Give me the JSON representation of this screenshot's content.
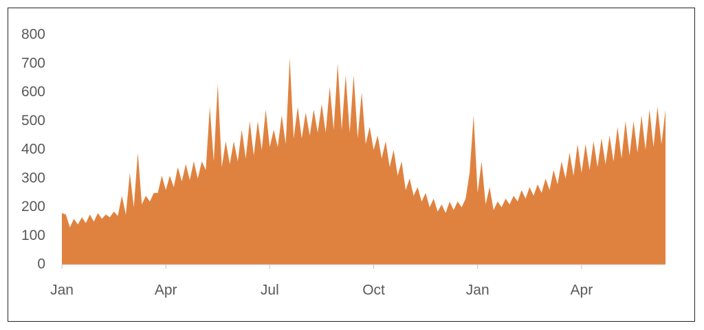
{
  "chart_data": {
    "type": "area",
    "color": "#e0823f",
    "categories": [
      "Jan",
      null,
      null,
      null,
      null,
      null,
      null,
      null,
      null,
      null,
      null,
      null,
      null,
      null,
      null,
      null,
      null,
      null,
      null,
      null,
      null,
      null,
      null,
      null,
      null,
      null,
      "Apr",
      null,
      null,
      null,
      null,
      null,
      null,
      null,
      null,
      null,
      null,
      null,
      null,
      null,
      null,
      null,
      null,
      null,
      null,
      null,
      null,
      null,
      null,
      null,
      null,
      null,
      "Jul",
      null,
      null,
      null,
      null,
      null,
      null,
      null,
      null,
      null,
      null,
      null,
      null,
      null,
      null,
      null,
      null,
      null,
      null,
      null,
      null,
      null,
      null,
      null,
      null,
      null,
      "Oct",
      null,
      null,
      null,
      null,
      null,
      null,
      null,
      null,
      null,
      null,
      null,
      null,
      null,
      null,
      null,
      null,
      null,
      null,
      null,
      null,
      null,
      null,
      null,
      null,
      null,
      "Jan",
      null,
      null,
      null,
      null,
      null,
      null,
      null,
      null,
      null,
      null,
      null,
      null,
      null,
      null,
      null,
      null,
      null,
      null,
      null,
      null,
      null,
      null,
      null,
      null,
      null,
      "Apr",
      null,
      null,
      null,
      null,
      null,
      null,
      null,
      null,
      null,
      null,
      null,
      null,
      null,
      null,
      null,
      null,
      null,
      null,
      null,
      null,
      null
    ],
    "values": [
      180,
      175,
      130,
      160,
      140,
      165,
      145,
      175,
      150,
      180,
      160,
      175,
      165,
      185,
      170,
      240,
      175,
      320,
      200,
      390,
      210,
      240,
      220,
      250,
      250,
      310,
      260,
      310,
      270,
      340,
      290,
      350,
      295,
      360,
      300,
      360,
      330,
      550,
      360,
      630,
      340,
      430,
      350,
      430,
      360,
      470,
      370,
      500,
      380,
      500,
      400,
      540,
      410,
      470,
      410,
      520,
      420,
      720,
      440,
      550,
      440,
      530,
      450,
      540,
      460,
      560,
      460,
      620,
      470,
      700,
      470,
      660,
      460,
      660,
      440,
      600,
      420,
      480,
      400,
      450,
      370,
      430,
      340,
      400,
      310,
      360,
      260,
      300,
      240,
      270,
      220,
      250,
      200,
      230,
      185,
      210,
      180,
      220,
      190,
      220,
      200,
      230,
      320,
      520,
      250,
      360,
      210,
      270,
      190,
      220,
      200,
      230,
      210,
      240,
      220,
      260,
      230,
      270,
      240,
      280,
      250,
      300,
      260,
      330,
      280,
      360,
      300,
      390,
      310,
      420,
      320,
      420,
      330,
      430,
      340,
      440,
      350,
      450,
      360,
      480,
      370,
      500,
      380,
      500,
      390,
      520,
      400,
      540,
      410,
      550,
      420,
      540
    ],
    "ylim": [
      0,
      800
    ],
    "yticks": [
      0,
      100,
      200,
      300,
      400,
      500,
      600,
      700,
      800
    ]
  }
}
